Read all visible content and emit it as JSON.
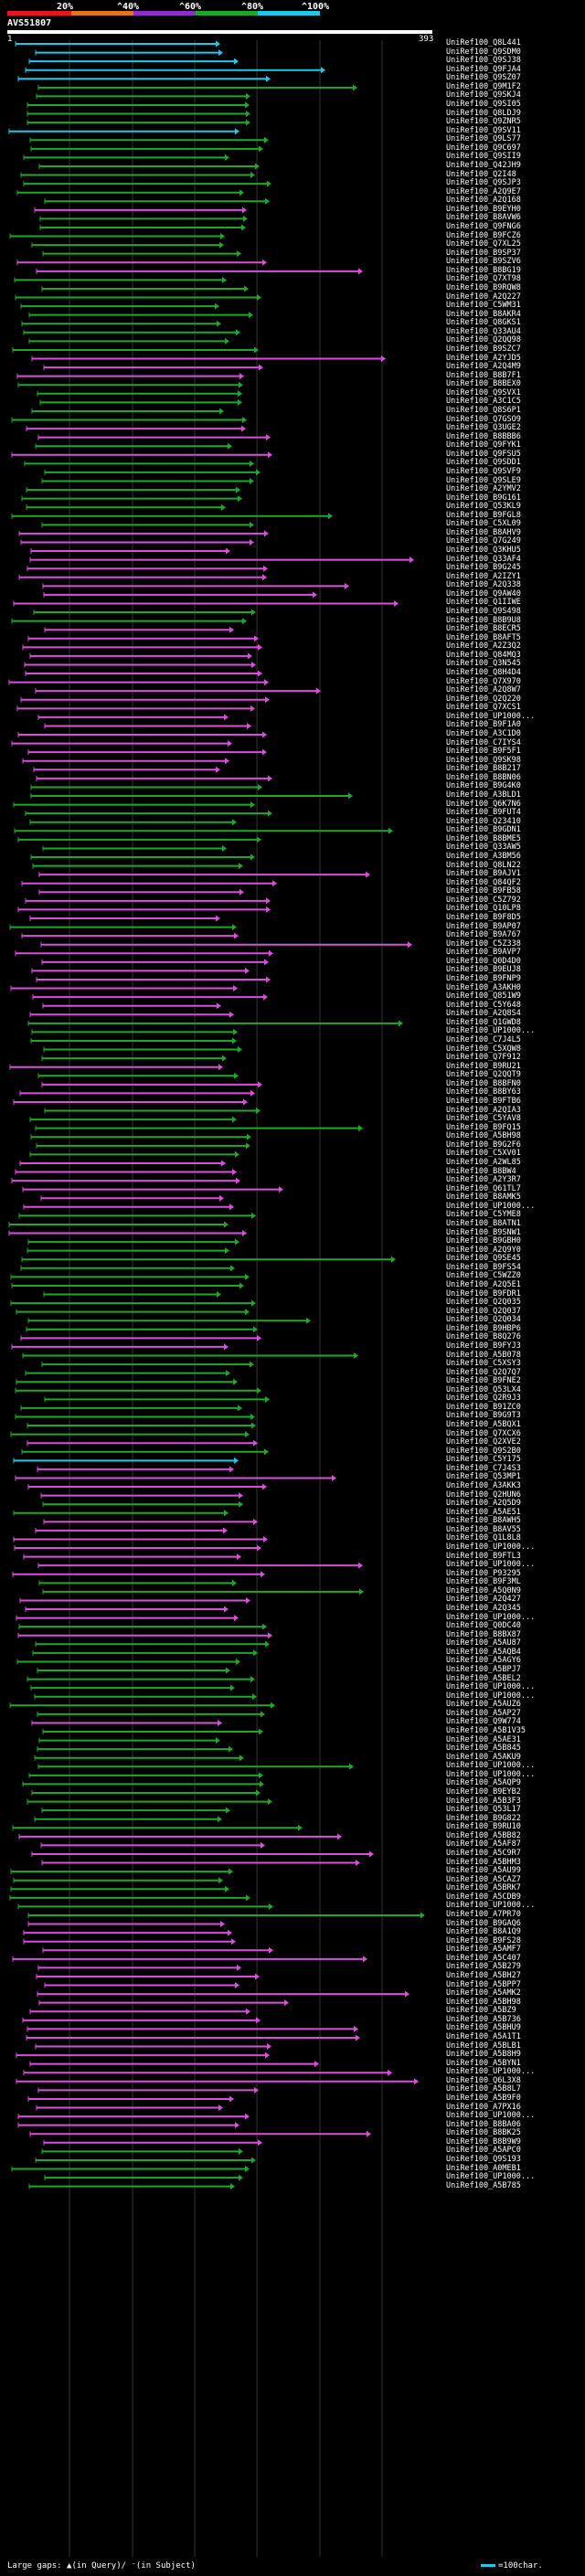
{
  "legend": {
    "labels": [
      "20%",
      "^40%",
      "^60%",
      "^80%",
      "^100%"
    ],
    "colors": [
      "#e8141f",
      "#e4741b",
      "#8b2fc9",
      "#1fa72b",
      "#1ec9e8"
    ]
  },
  "query": {
    "title": "AVS51807",
    "start": "1",
    "end": "393"
  },
  "footer": {
    "gaps_text": "Large gaps: ▲(in Query)/ ⁻(in Subject)",
    "scale_text": "=100char.",
    "scale_color": "#1ec9e8"
  },
  "hits": [
    {
      "label": "UniRef100_Q8L441",
      "color": "#1ec9e8"
    },
    {
      "label": "UniRef100_Q9SDM0",
      "color": "#1ec9e8"
    },
    {
      "label": "UniRef100_Q9SJ38",
      "color": "#1ec9e8"
    },
    {
      "label": "UniRef100_Q9FJA4",
      "color": "#1ec9e8"
    },
    {
      "label": "UniRef100_Q9SZ07",
      "color": "#1ec9e8"
    },
    {
      "label": "UniRef100_Q9M1F2",
      "color": "#1fa72b"
    },
    {
      "label": "UniRef100_Q9SKJ4",
      "color": "#1fa72b"
    },
    {
      "label": "UniRef100_Q9SI05",
      "color": "#1fa72b"
    },
    {
      "label": "UniRef100_Q8LDJ9",
      "color": "#1fa72b"
    },
    {
      "label": "UniRef100_Q9ZNR5",
      "color": "#1fa72b"
    },
    {
      "label": "UniRef100_Q9SV11",
      "color": "#1ec9e8"
    },
    {
      "label": "UniRef100_Q9LS77",
      "color": "#1fa72b"
    },
    {
      "label": "UniRef100_Q9C697",
      "color": "#1fa72b"
    },
    {
      "label": "UniRef100_Q9SII9",
      "color": "#1fa72b"
    },
    {
      "label": "UniRef100_Q42JH9",
      "color": "#1fa72b"
    },
    {
      "label": "UniRef100_Q2I48",
      "color": "#1fa72b"
    },
    {
      "label": "UniRef100_Q9SJP3",
      "color": "#1fa72b"
    },
    {
      "label": "UniRef100_A2Q9E7",
      "color": "#1fa72b"
    },
    {
      "label": "UniRef100_A2Q168",
      "color": "#1fa72b"
    },
    {
      "label": "UniRef100_B9EYH0",
      "color": "#d94fd9"
    },
    {
      "label": "UniRef100_B8AVW6",
      "color": "#1fa72b"
    },
    {
      "label": "UniRef100_Q9FNG6",
      "color": "#1fa72b"
    },
    {
      "label": "UniRef100_B9FCZ6",
      "color": "#1fa72b"
    },
    {
      "label": "UniRef100_Q7XL25",
      "color": "#1fa72b"
    },
    {
      "label": "UniRef100_B9SP37",
      "color": "#1fa72b"
    },
    {
      "label": "UniRef100_B9SZV6",
      "color": "#d94fd9"
    },
    {
      "label": "UniRef100_B8BG19",
      "color": "#d94fd9"
    },
    {
      "label": "UniRef100_Q7XT98",
      "color": "#1fa72b"
    },
    {
      "label": "UniRef100_B9RQW8",
      "color": "#1fa72b"
    },
    {
      "label": "UniRef100_A2Q227",
      "color": "#1fa72b"
    },
    {
      "label": "UniRef100_C5WM31",
      "color": "#1fa72b"
    },
    {
      "label": "UniRef100_B8AKR4",
      "color": "#1fa72b"
    },
    {
      "label": "UniRef100_Q8GKS1",
      "color": "#1fa72b"
    },
    {
      "label": "UniRef100_Q33AU4",
      "color": "#1fa72b"
    },
    {
      "label": "UniRef100_Q2QQ98",
      "color": "#1fa72b"
    },
    {
      "label": "UniRef100_B9SZC7",
      "color": "#1fa72b"
    },
    {
      "label": "UniRef100_A2YJD5",
      "color": "#d94fd9"
    },
    {
      "label": "UniRef100_A2Q4M9",
      "color": "#d94fd9"
    },
    {
      "label": "UniRef100_B8B7F1",
      "color": "#d94fd9"
    },
    {
      "label": "UniRef100_B8BEX0",
      "color": "#1fa72b"
    },
    {
      "label": "UniRef100_Q9SVX1",
      "color": "#1fa72b"
    },
    {
      "label": "UniRef100_A3C1C5",
      "color": "#1fa72b"
    },
    {
      "label": "UniRef100_Q8S6P1",
      "color": "#1fa72b"
    },
    {
      "label": "UniRef100_Q7GSO9",
      "color": "#1fa72b"
    },
    {
      "label": "UniRef100_Q3UGE2",
      "color": "#d94fd9"
    },
    {
      "label": "UniRef100_B8BBB6",
      "color": "#d94fd9"
    },
    {
      "label": "UniRef100_Q9FYK1",
      "color": "#1fa72b"
    },
    {
      "label": "UniRef100_Q9FSU5",
      "color": "#d94fd9"
    },
    {
      "label": "UniRef100_Q9SDD1",
      "color": "#1fa72b"
    },
    {
      "label": "UniRef100_Q9SVF9",
      "color": "#1fa72b"
    },
    {
      "label": "UniRef100_Q9SLE9",
      "color": "#1fa72b"
    },
    {
      "label": "UniRef100_A2YMV2",
      "color": "#1fa72b"
    },
    {
      "label": "UniRef100_B9G161",
      "color": "#1fa72b"
    },
    {
      "label": "UniRef100_Q53KL9",
      "color": "#1fa72b"
    },
    {
      "label": "UniRef100_B9FGL8",
      "color": "#1fa72b"
    },
    {
      "label": "UniRef100_C5XL09",
      "color": "#1fa72b"
    },
    {
      "label": "UniRef100_B8AHV9",
      "color": "#d94fd9"
    },
    {
      "label": "UniRef100_Q7G249",
      "color": "#d94fd9"
    },
    {
      "label": "UniRef100_Q3KHU5",
      "color": "#d94fd9"
    },
    {
      "label": "UniRef100_Q33AF4",
      "color": "#d94fd9"
    },
    {
      "label": "UniRef100_B9G245",
      "color": "#d94fd9"
    },
    {
      "label": "UniRef100_A2IZY1",
      "color": "#d94fd9"
    },
    {
      "label": "UniRef100_A2Q338",
      "color": "#d94fd9"
    },
    {
      "label": "UniRef100_Q9AW40",
      "color": "#d94fd9"
    },
    {
      "label": "UniRef100_Q1IIWE",
      "color": "#d94fd9"
    },
    {
      "label": "UniRef100_Q9S498",
      "color": "#1fa72b"
    },
    {
      "label": "UniRef100_B8B9U8",
      "color": "#1fa72b"
    },
    {
      "label": "UniRef100_B8ECR5",
      "color": "#d94fd9"
    },
    {
      "label": "UniRef100_B8AFT5",
      "color": "#d94fd9"
    },
    {
      "label": "UniRef100_A2Z3Q2",
      "color": "#d94fd9"
    },
    {
      "label": "UniRef100_Q84MQ3",
      "color": "#d94fd9"
    },
    {
      "label": "UniRef100_Q3N545",
      "color": "#d94fd9"
    },
    {
      "label": "UniRef100_Q8H4D4",
      "color": "#d94fd9"
    },
    {
      "label": "UniRef100_Q7X970",
      "color": "#d94fd9"
    },
    {
      "label": "UniRef100_A2Q8W7",
      "color": "#d94fd9"
    },
    {
      "label": "UniRef100_Q2Q220",
      "color": "#d94fd9"
    },
    {
      "label": "UniRef100_Q7XCS1",
      "color": "#d94fd9"
    },
    {
      "label": "UniRef100_UP1000...",
      "color": "#d94fd9"
    },
    {
      "label": "UniRef100_B9F1A0",
      "color": "#d94fd9"
    },
    {
      "label": "UniRef100_A3C1D0",
      "color": "#d94fd9"
    },
    {
      "label": "UniRef100_C7IYS4",
      "color": "#d94fd9"
    },
    {
      "label": "UniRef100_B9F5F1",
      "color": "#d94fd9"
    },
    {
      "label": "UniRef100_Q9SK98",
      "color": "#d94fd9"
    },
    {
      "label": "UniRef100_B8B217",
      "color": "#d94fd9"
    },
    {
      "label": "UniRef100_B8BN06",
      "color": "#d94fd9"
    },
    {
      "label": "UniRef100_B9G4K0",
      "color": "#1fa72b"
    },
    {
      "label": "UniRef100_A3BLD1",
      "color": "#1fa72b"
    },
    {
      "label": "UniRef100_Q6K7N6",
      "color": "#1fa72b"
    },
    {
      "label": "UniRef100_B9FUT4",
      "color": "#1fa72b"
    },
    {
      "label": "UniRef100_Q23410",
      "color": "#1fa72b"
    },
    {
      "label": "UniRef100_B9GDN1",
      "color": "#1fa72b"
    },
    {
      "label": "UniRef100_B8BME5",
      "color": "#1fa72b"
    },
    {
      "label": "UniRef100_Q33AW5",
      "color": "#1fa72b"
    },
    {
      "label": "UniRef100_A3BM56",
      "color": "#1fa72b"
    },
    {
      "label": "UniRef100_Q8LN22",
      "color": "#1fa72b"
    },
    {
      "label": "UniRef100_B9AJV1",
      "color": "#d94fd9"
    },
    {
      "label": "UniRef100_Q84QF2",
      "color": "#d94fd9"
    },
    {
      "label": "UniRef100_B9FB58",
      "color": "#d94fd9"
    },
    {
      "label": "UniRef100_C5Z792",
      "color": "#d94fd9"
    },
    {
      "label": "UniRef100_Q10LP8",
      "color": "#d94fd9"
    },
    {
      "label": "UniRef100_B9F8D5",
      "color": "#d94fd9"
    },
    {
      "label": "UniRef100_B9AP07",
      "color": "#1fa72b"
    },
    {
      "label": "UniRef100_B9A767",
      "color": "#d94fd9"
    },
    {
      "label": "UniRef100_C5Z338",
      "color": "#d94fd9"
    },
    {
      "label": "UniRef100_B9AVP7",
      "color": "#d94fd9"
    },
    {
      "label": "UniRef100_Q0D4D0",
      "color": "#d94fd9"
    },
    {
      "label": "UniRef100_B9EUJ8",
      "color": "#d94fd9"
    },
    {
      "label": "UniRef100_B9FNP9",
      "color": "#d94fd9"
    },
    {
      "label": "UniRef100_A3AKH0",
      "color": "#d94fd9"
    },
    {
      "label": "UniRef100_Q851W9",
      "color": "#d94fd9"
    },
    {
      "label": "UniRef100_C5Y648",
      "color": "#d94fd9"
    },
    {
      "label": "UniRef100_A2Q8S4",
      "color": "#d94fd9"
    },
    {
      "label": "UniRef100_Q1GWD8",
      "color": "#1fa72b"
    },
    {
      "label": "UniRef100_UP1000...",
      "color": "#1fa72b"
    },
    {
      "label": "UniRef100_C7J4L5",
      "color": "#1fa72b"
    },
    {
      "label": "UniRef100_C5XQW8",
      "color": "#1fa72b"
    },
    {
      "label": "UniRef100_Q7F912",
      "color": "#1fa72b"
    },
    {
      "label": "UniRef100_B9RU21",
      "color": "#d94fd9"
    },
    {
      "label": "UniRef100_Q2QQT9",
      "color": "#1fa72b"
    },
    {
      "label": "UniRef100_B8BFN0",
      "color": "#d94fd9"
    },
    {
      "label": "UniRef100_B8BY63",
      "color": "#d94fd9"
    },
    {
      "label": "UniRef100_B9FTB6",
      "color": "#d94fd9"
    },
    {
      "label": "UniRef100_A2QIA3",
      "color": "#1fa72b"
    },
    {
      "label": "UniRef100_C5YAV8",
      "color": "#1fa72b"
    },
    {
      "label": "UniRef100_B9FQ15",
      "color": "#1fa72b"
    },
    {
      "label": "UniRef100_A5BH98",
      "color": "#1fa72b"
    },
    {
      "label": "UniRef100_B9G2F6",
      "color": "#1fa72b"
    },
    {
      "label": "UniRef100_C5XV01",
      "color": "#1fa72b"
    },
    {
      "label": "UniRef100_A2WL85",
      "color": "#d94fd9"
    },
    {
      "label": "UniRef100_B8BW4",
      "color": "#d94fd9"
    },
    {
      "label": "UniRef100_A2Y3R7",
      "color": "#d94fd9"
    },
    {
      "label": "UniRef100_Q61TL7",
      "color": "#d94fd9"
    },
    {
      "label": "UniRef100_B8AMK5",
      "color": "#d94fd9"
    },
    {
      "label": "UniRef100_UP1000...",
      "color": "#d94fd9"
    },
    {
      "label": "UniRef100_C5YME8",
      "color": "#1fa72b"
    },
    {
      "label": "UniRef100_B8ATN1",
      "color": "#1fa72b"
    },
    {
      "label": "UniRef100_B9SNW1",
      "color": "#d94fd9"
    },
    {
      "label": "UniRef100_B9GBH0",
      "color": "#1fa72b"
    },
    {
      "label": "UniRef100_A2Q9Y0",
      "color": "#1fa72b"
    },
    {
      "label": "UniRef100_Q9SE45",
      "color": "#1fa72b"
    },
    {
      "label": "UniRef100_B9FS54",
      "color": "#1fa72b"
    },
    {
      "label": "UniRef100_C5WZZ0",
      "color": "#1fa72b"
    },
    {
      "label": "UniRef100_A2Q5E1",
      "color": "#1fa72b"
    },
    {
      "label": "UniRef100_B9FDR1",
      "color": "#1fa72b"
    },
    {
      "label": "UniRef100_Q2Q035",
      "color": "#1fa72b"
    },
    {
      "label": "UniRef100_Q2Q037",
      "color": "#1fa72b"
    },
    {
      "label": "UniRef100_Q2Q034",
      "color": "#1fa72b"
    },
    {
      "label": "UniRef100_B9HBP6",
      "color": "#1fa72b"
    },
    {
      "label": "UniRef100_B8Q276",
      "color": "#d94fd9"
    },
    {
      "label": "UniRef100_B9FYJ3",
      "color": "#d94fd9"
    },
    {
      "label": "UniRef100_A5B078",
      "color": "#1fa72b"
    },
    {
      "label": "UniRef100_C5XSY3",
      "color": "#1fa72b"
    },
    {
      "label": "UniRef100_Q2Q7Q7",
      "color": "#1fa72b"
    },
    {
      "label": "UniRef100_B9FNE2",
      "color": "#1fa72b"
    },
    {
      "label": "UniRef100_Q53LX4",
      "color": "#1fa72b"
    },
    {
      "label": "UniRef100_Q2R9J3",
      "color": "#1fa72b"
    },
    {
      "label": "UniRef100_B91ZC0",
      "color": "#1fa72b"
    },
    {
      "label": "UniRef100_B9G9T3",
      "color": "#1fa72b"
    },
    {
      "label": "UniRef100_A5BQX1",
      "color": "#1fa72b"
    },
    {
      "label": "UniRef100_Q7XCX6",
      "color": "#1fa72b"
    },
    {
      "label": "UniRef100_Q2XVE2",
      "color": "#d94fd9"
    },
    {
      "label": "UniRef100_Q9S2B0",
      "color": "#1fa72b"
    },
    {
      "label": "UniRef100_C5Y175",
      "color": "#1ec9e8"
    },
    {
      "label": "UniRef100_C7J4S3",
      "color": "#d94fd9"
    },
    {
      "label": "UniRef100_Q53MP1",
      "color": "#d94fd9"
    },
    {
      "label": "UniRef100_A3AKK3",
      "color": "#d94fd9"
    },
    {
      "label": "UniRef100_Q2HUN6",
      "color": "#d94fd9"
    },
    {
      "label": "UniRef100_A2Q5D9",
      "color": "#1fa72b"
    },
    {
      "label": "UniRef100_A5AE51",
      "color": "#1fa72b"
    },
    {
      "label": "UniRef100_B8AWH5",
      "color": "#d94fd9"
    },
    {
      "label": "UniRef100_B8AV55",
      "color": "#d94fd9"
    },
    {
      "label": "UniRef100_Q1L8L8",
      "color": "#d94fd9"
    },
    {
      "label": "UniRef100_UP1000...",
      "color": "#d94fd9"
    },
    {
      "label": "UniRef100_B9FTL3",
      "color": "#d94fd9"
    },
    {
      "label": "UniRef100_UP1000...",
      "color": "#d94fd9"
    },
    {
      "label": "UniRef100_P93295",
      "color": "#d94fd9"
    },
    {
      "label": "UniRef100_B9F3ML",
      "color": "#1fa72b"
    },
    {
      "label": "UniRef100_A5Q0N9",
      "color": "#1fa72b"
    },
    {
      "label": "UniRef100_A2Q427",
      "color": "#d94fd9"
    },
    {
      "label": "UniRef100_A2Q345",
      "color": "#d94fd9"
    },
    {
      "label": "UniRef100_UP1000...",
      "color": "#d94fd9"
    },
    {
      "label": "UniRef100_Q0DC40",
      "color": "#1fa72b"
    },
    {
      "label": "UniRef100_B8BX87",
      "color": "#d94fd9"
    },
    {
      "label": "UniRef100_A5AU87",
      "color": "#1fa72b"
    },
    {
      "label": "UniRef100_A5AQB4",
      "color": "#1fa72b"
    },
    {
      "label": "UniRef100_A5AGY6",
      "color": "#1fa72b"
    },
    {
      "label": "UniRef100_A5BPJ7",
      "color": "#1fa72b"
    },
    {
      "label": "UniRef100_A5BEL2",
      "color": "#1fa72b"
    },
    {
      "label": "UniRef100_UP1000...",
      "color": "#1fa72b"
    },
    {
      "label": "UniRef100_UP1000...",
      "color": "#1fa72b"
    },
    {
      "label": "UniRef100_A5AUZ6",
      "color": "#1fa72b"
    },
    {
      "label": "UniRef100_A5AP27",
      "color": "#1fa72b"
    },
    {
      "label": "UniRef100_Q9W774",
      "color": "#d94fd9"
    },
    {
      "label": "UniRef100_A5B1V35",
      "color": "#1fa72b"
    },
    {
      "label": "UniRef100_A5AE31",
      "color": "#1fa72b"
    },
    {
      "label": "UniRef100_A5B845",
      "color": "#1fa72b"
    },
    {
      "label": "UniRef100_A5AKU9",
      "color": "#1fa72b"
    },
    {
      "label": "UniRef100_UP1000...",
      "color": "#1fa72b"
    },
    {
      "label": "UniRef100_UP1000...",
      "color": "#1fa72b"
    },
    {
      "label": "UniRef100_A5AQP9",
      "color": "#1fa72b"
    },
    {
      "label": "UniRef100_B9EYB2",
      "color": "#1fa72b"
    },
    {
      "label": "UniRef100_A5B3F3",
      "color": "#1fa72b"
    },
    {
      "label": "UniRef100_Q53L17",
      "color": "#1fa72b"
    },
    {
      "label": "UniRef100_B9G822",
      "color": "#1fa72b"
    },
    {
      "label": "UniRef100_B9RU10",
      "color": "#1fa72b"
    },
    {
      "label": "UniRef100_A5BB82",
      "color": "#d94fd9"
    },
    {
      "label": "UniRef100_A5AF87",
      "color": "#d94fd9"
    },
    {
      "label": "UniRef100_A5C9R7",
      "color": "#d94fd9"
    },
    {
      "label": "UniRef100_A5BHM3",
      "color": "#d94fd9"
    },
    {
      "label": "UniRef100_A5AU99",
      "color": "#1fa72b"
    },
    {
      "label": "UniRef100_A5CAZ7",
      "color": "#1fa72b"
    },
    {
      "label": "UniRef100_A5BRK7",
      "color": "#1fa72b"
    },
    {
      "label": "UniRef100_A5CDB9",
      "color": "#1fa72b"
    },
    {
      "label": "UniRef100_UP1000...",
      "color": "#1fa72b"
    },
    {
      "label": "UniRef100_A7PR70",
      "color": "#1fa72b"
    },
    {
      "label": "UniRef100_B9GAQ6",
      "color": "#d94fd9"
    },
    {
      "label": "UniRef100_B8A1Q9",
      "color": "#d94fd9"
    },
    {
      "label": "UniRef100_B9FS28",
      "color": "#d94fd9"
    },
    {
      "label": "UniRef100_A5AMF7",
      "color": "#d94fd9"
    },
    {
      "label": "UniRef100_A5C407",
      "color": "#d94fd9"
    },
    {
      "label": "UniRef100_A5B279",
      "color": "#d94fd9"
    },
    {
      "label": "UniRef100_A5BH27",
      "color": "#d94fd9"
    },
    {
      "label": "UniRef100_A5BPP7",
      "color": "#d94fd9"
    },
    {
      "label": "UniRef100_A5AMK2",
      "color": "#d94fd9"
    },
    {
      "label": "UniRef100_A5BH98",
      "color": "#d94fd9"
    },
    {
      "label": "UniRef100_A5BZ9",
      "color": "#d94fd9"
    },
    {
      "label": "UniRef100_A5B736",
      "color": "#d94fd9"
    },
    {
      "label": "UniRef100_A5BHU9",
      "color": "#d94fd9"
    },
    {
      "label": "UniRef100_A5A1T1",
      "color": "#d94fd9"
    },
    {
      "label": "UniRef100_A5BLB1",
      "color": "#d94fd9"
    },
    {
      "label": "UniRef100_A5B8H9",
      "color": "#d94fd9"
    },
    {
      "label": "UniRef100_A5BYN1",
      "color": "#d94fd9"
    },
    {
      "label": "UniRef100_UP1000...",
      "color": "#d94fd9"
    },
    {
      "label": "UniRef100_Q6L3X8",
      "color": "#d94fd9"
    },
    {
      "label": "UniRef100_A5B8L7",
      "color": "#d94fd9"
    },
    {
      "label": "UniRef100_A5B9F0",
      "color": "#d94fd9"
    },
    {
      "label": "UniRef100_A7PX16",
      "color": "#d94fd9"
    },
    {
      "label": "UniRef100_UP1000...",
      "color": "#d94fd9"
    },
    {
      "label": "UniRef100_B8BA06",
      "color": "#d94fd9"
    },
    {
      "label": "UniRef100_B8BK25",
      "color": "#d94fd9"
    },
    {
      "label": "UniRef100_B8B9W9",
      "color": "#d94fd9"
    },
    {
      "label": "UniRef100_A5APC0",
      "color": "#1fa72b"
    },
    {
      "label": "UniRef100_Q9S193",
      "color": "#1fa72b"
    },
    {
      "label": "UniRef100_A0MEB1",
      "color": "#1fa72b"
    },
    {
      "label": "UniRef100_UP1000...",
      "color": "#1fa72b"
    },
    {
      "label": "UniRef100_A5B785",
      "color": "#1fa72b"
    }
  ]
}
